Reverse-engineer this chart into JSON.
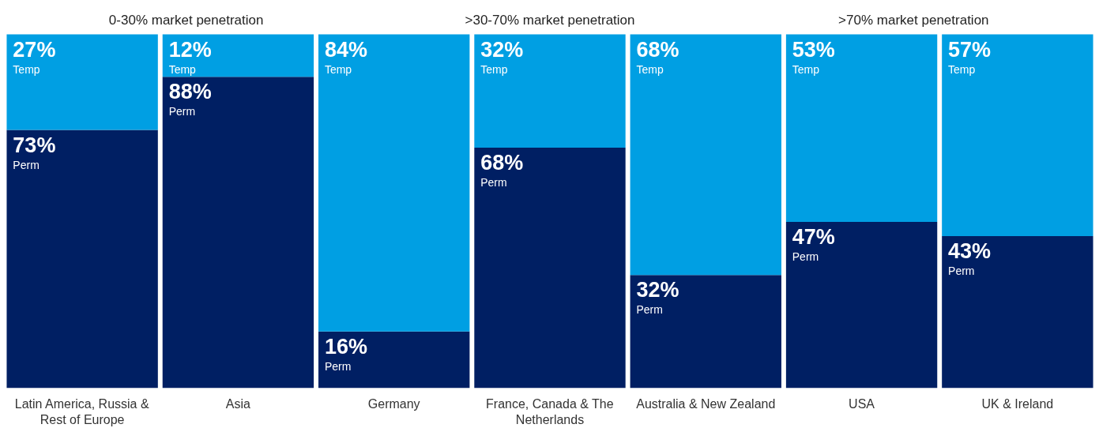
{
  "chart_data": {
    "type": "bar",
    "stacked": true,
    "categories": [
      "Latin America, Russia & Rest of Europe",
      "Asia",
      "Germany",
      "France, Canada & The Netherlands",
      "Australia & New Zealand",
      "USA",
      "UK & Ireland"
    ],
    "series": [
      {
        "name": "Perm",
        "color": "#001f63",
        "values": [
          73,
          88,
          16,
          68,
          32,
          47,
          43
        ],
        "value_labels": [
          "73%",
          "88%",
          "16%",
          "68%",
          "32%",
          "47%",
          "43%"
        ]
      },
      {
        "name": "Temp",
        "color": "#009fe3",
        "values": [
          27,
          12,
          84,
          32,
          68,
          53,
          57
        ],
        "value_labels": [
          "27%",
          "12%",
          "84%",
          "32%",
          "68%",
          "53%",
          "57%"
        ]
      }
    ],
    "annotations": [
      "0-30% market penetration",
      ">30-70% market penetration",
      ">70% market penetration"
    ]
  }
}
